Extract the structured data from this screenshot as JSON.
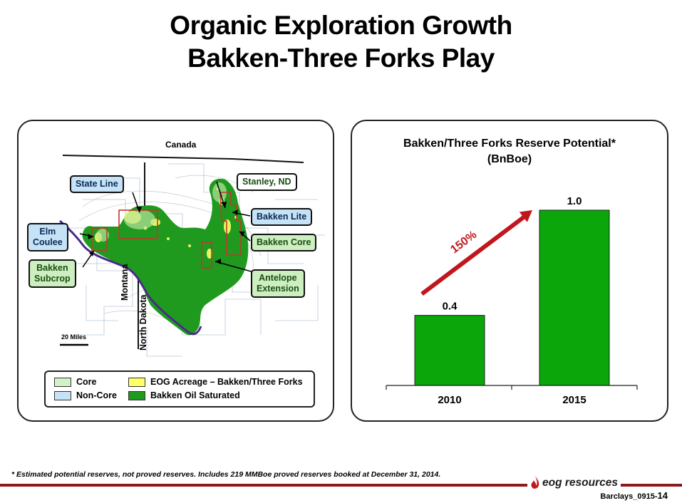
{
  "title": {
    "line1": "Organic Exploration Growth",
    "line2": "Bakken-Three Forks Play"
  },
  "map": {
    "labels": {
      "canada": "Canada",
      "montana": "Montana",
      "north_dakota": "North Dakota",
      "scale": "20 Miles"
    },
    "callouts": {
      "state_line": "State Line",
      "stanley": "Stanley, ND",
      "bakken_lite": "Bakken Lite",
      "elm_coulee_1": "Elm",
      "elm_coulee_2": "Coulee",
      "bakken_core": "Bakken Core",
      "bakken_subcrop_1": "Bakken",
      "bakken_subcrop_2": "Subcrop",
      "antelope_1": "Antelope",
      "antelope_2": "Extension"
    },
    "legend": {
      "core": "Core",
      "non_core": "Non-Core",
      "eog_acreage": "EOG Acreage – Bakken/Three Forks",
      "oil_saturated": "Bakken Oil Saturated"
    },
    "colors": {
      "core": "#d3f0c8",
      "non_core": "#c6e2f7",
      "eog_acreage": "#ffff66",
      "oil_saturated": "#1f9a1f",
      "boundary": "#4b2a8c"
    }
  },
  "chart_data": {
    "type": "bar",
    "title": "Bakken/Three Forks Reserve Potential*",
    "subtitle": "(BnBoe)",
    "categories": [
      "2010",
      "2015"
    ],
    "values": [
      0.4,
      1.0
    ],
    "value_labels": [
      "0.4",
      "1.0"
    ],
    "ylim": [
      0,
      1.0
    ],
    "bar_color": "#0aa60a",
    "grid": false,
    "annotation": {
      "text": "150%",
      "color": "#c0161c",
      "type": "arrow",
      "from_category": "2010",
      "to_category": "2015"
    }
  },
  "footer": {
    "footnote": "* Estimated potential reserves, not proved reserves. Includes 219 MMBoe proved reserves booked at December 31, 2014.",
    "logo": "eog resources",
    "page_code": "Barclays_0915-",
    "page_number": "14",
    "accent_color": "#8c1b1b"
  }
}
